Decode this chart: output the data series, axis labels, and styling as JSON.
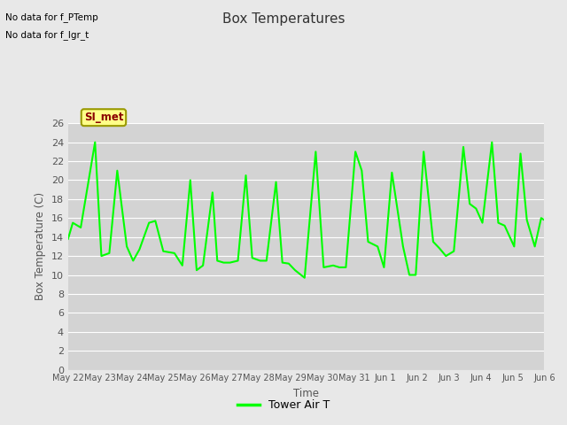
{
  "title": "Box Temperatures",
  "ylabel": "Box Temperature (C)",
  "xlabel": "Time",
  "line_color": "#00FF00",
  "line_width": 1.5,
  "ylim": [
    0,
    26
  ],
  "yticks": [
    0,
    2,
    4,
    6,
    8,
    10,
    12,
    14,
    16,
    18,
    20,
    22,
    24,
    26
  ],
  "fig_bg_color": "#E8E8E8",
  "plot_bg_color": "#D3D3D3",
  "legend_label": "Tower Air T",
  "no_data_text1": "No data for f_PTemp",
  "no_data_text2": "No data for f_lgr_t",
  "box_label": "SI_met",
  "tick_labels": [
    "May 22",
    "May 23",
    "May 24",
    "May 25",
    "May 26",
    "May 27",
    "May 28",
    "May 29",
    "May 30",
    "May 31",
    "Jun 1",
    "Jun 2",
    "Jun 3",
    "Jun 4",
    "Jun 5",
    "Jun 6"
  ],
  "data_x": [
    0.0,
    0.15,
    0.4,
    0.85,
    1.05,
    1.3,
    1.55,
    1.85,
    2.05,
    2.25,
    2.55,
    2.75,
    3.0,
    3.35,
    3.6,
    3.85,
    4.05,
    4.25,
    4.55,
    4.7,
    4.9,
    5.1,
    5.35,
    5.6,
    5.8,
    6.05,
    6.25,
    6.55,
    6.75,
    6.95,
    7.15,
    7.45,
    7.8,
    8.05,
    8.35,
    8.55,
    8.75,
    9.05,
    9.25,
    9.45,
    9.75,
    9.95,
    10.2,
    10.55,
    10.75,
    10.95,
    11.2,
    11.5,
    11.7,
    11.9,
    12.15,
    12.45,
    12.65,
    12.85,
    13.05,
    13.35,
    13.55,
    13.75,
    14.05,
    14.25,
    14.45,
    14.7,
    14.9,
    15.0
  ],
  "data_y": [
    13.8,
    15.5,
    15.0,
    24.0,
    12.0,
    12.3,
    21.0,
    13.0,
    11.5,
    12.7,
    15.5,
    15.7,
    12.5,
    12.3,
    11.0,
    20.0,
    10.5,
    11.0,
    18.7,
    11.5,
    11.3,
    11.3,
    11.5,
    20.5,
    11.8,
    11.5,
    11.5,
    19.8,
    11.3,
    11.2,
    10.5,
    9.7,
    23.0,
    10.8,
    11.0,
    10.8,
    10.8,
    23.0,
    21.0,
    13.5,
    13.0,
    10.8,
    20.8,
    13.0,
    10.0,
    10.0,
    23.0,
    13.5,
    12.8,
    12.0,
    12.5,
    23.5,
    17.5,
    17.0,
    15.5,
    24.0,
    15.5,
    15.2,
    13.0,
    22.8,
    15.8,
    13.0,
    16.0,
    15.8
  ]
}
